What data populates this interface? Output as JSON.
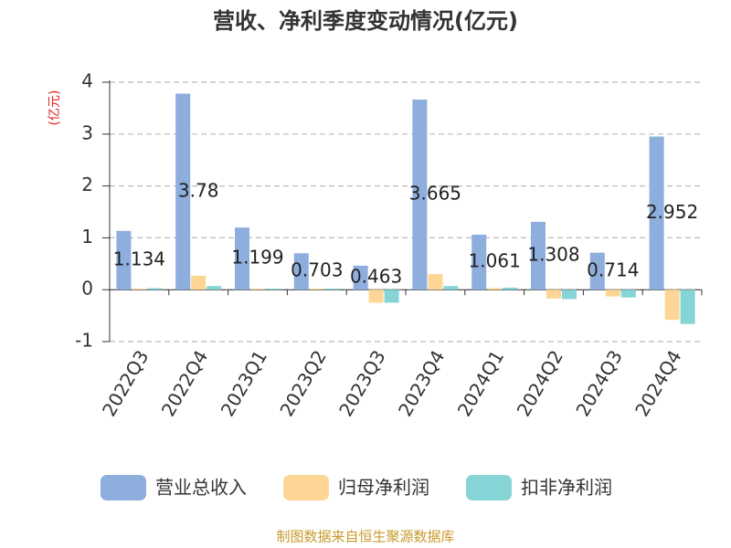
{
  "chart_data": {
    "type": "bar",
    "title": "营收、净利季度变动情况(亿元)",
    "y_label": "(亿元)",
    "source": "制图数据来自恒生聚源数据库",
    "categories": [
      "2022Q3",
      "2022Q4",
      "2023Q1",
      "2023Q2",
      "2023Q3",
      "2023Q4",
      "2024Q1",
      "2024Q2",
      "2024Q3",
      "2024Q4"
    ],
    "series": [
      {
        "name": "营业总收入",
        "color": "#8eaedd",
        "values": [
          1.134,
          3.78,
          1.199,
          0.703,
          0.463,
          3.665,
          1.061,
          1.308,
          0.714,
          2.952
        ]
      },
      {
        "name": "归母净利润",
        "color": "#fdd696",
        "values": [
          0.02,
          0.27,
          0.02,
          0.02,
          -0.25,
          0.3,
          0.03,
          -0.17,
          -0.13,
          -0.58
        ]
      },
      {
        "name": "扣非净利润",
        "color": "#85d4d6",
        "values": [
          0.03,
          0.07,
          0.02,
          0.02,
          -0.25,
          0.07,
          0.04,
          -0.18,
          -0.15,
          -0.66
        ]
      }
    ],
    "ylim": [
      -1,
      4
    ],
    "yticks": [
      -1,
      0,
      1,
      2,
      3,
      4
    ],
    "grid": true,
    "value_labels_series": 0
  }
}
